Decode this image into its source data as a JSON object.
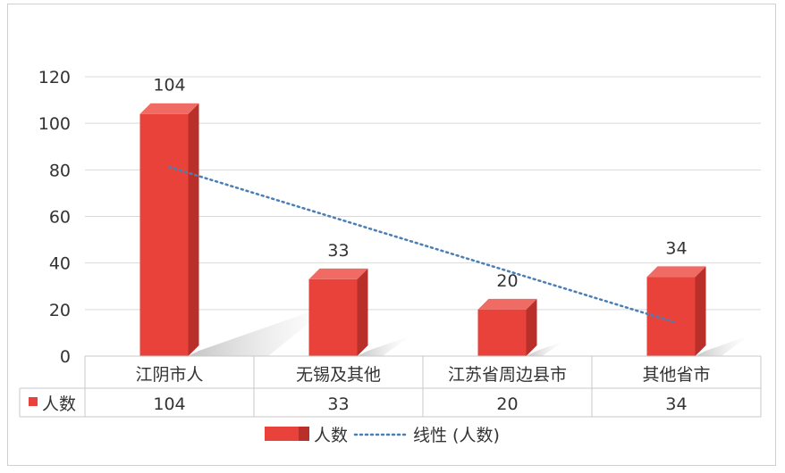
{
  "chart_data": {
    "type": "bar",
    "categories": [
      "江阴市人",
      "无锡及其他",
      "江苏省周边县市",
      "其他省市"
    ],
    "series": [
      {
        "name": "人数",
        "values": [
          104,
          33,
          20,
          34
        ],
        "color": "#e8423a"
      }
    ],
    "trendline": {
      "name": "线性 (人数)",
      "color": "#4a7fb5",
      "style": "dotted"
    },
    "ylim": [
      0,
      120
    ],
    "yticks": [
      "0",
      "20",
      "40",
      "60",
      "80",
      "100",
      "120"
    ],
    "data_labels": [
      "104",
      "33",
      "20",
      "34"
    ],
    "data_table": {
      "row_label": "人数",
      "values": [
        "104",
        "33",
        "20",
        "34"
      ]
    },
    "legend": {
      "position": "bottom",
      "entries": [
        "人数",
        "线性 (人数)"
      ]
    },
    "grid": true,
    "title": "",
    "xlabel": "",
    "ylabel": ""
  }
}
